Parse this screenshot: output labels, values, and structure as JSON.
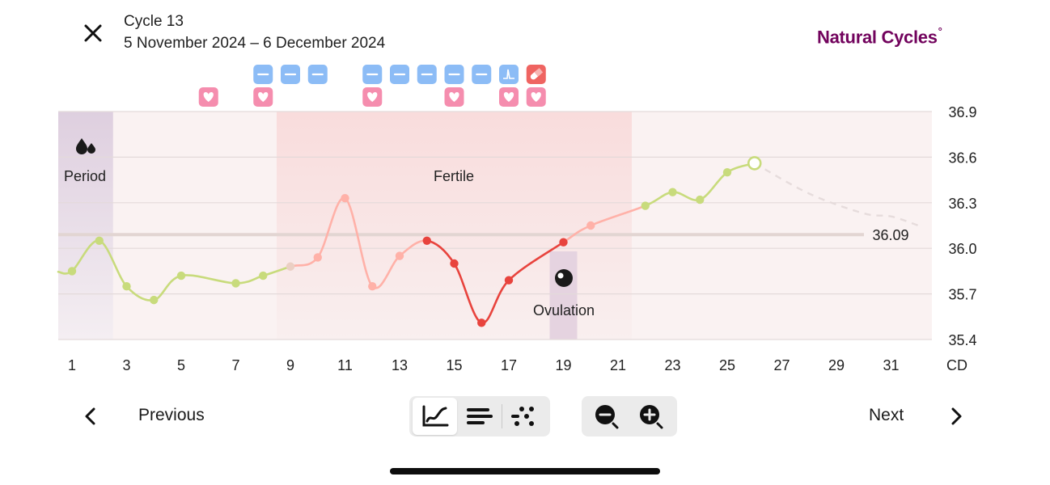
{
  "header": {
    "cycle_title": "Cycle 13",
    "cycle_dates": "5 November 2024 – 6 December 2024",
    "brand": "Natural Cycles",
    "brand_mark": "°"
  },
  "colors": {
    "brand": "#72035d",
    "period_zone": "#decfdf",
    "fertile_zone": "#f9dcdc",
    "infertile_line": "#c8db7c",
    "fertile_line_light": "#ffb1a8",
    "fertile_line_dark": "#e8433d",
    "data_badge": "#8cbcf6",
    "love_badge": "#f58dae",
    "pill_badge": "#ef6461"
  },
  "chart": {
    "zones": [
      {
        "label": "Period",
        "icon": "drops-icon"
      },
      {
        "label": "Fertile"
      },
      {
        "label": "Ovulation",
        "icon": "ovulation-icon"
      }
    ],
    "cover_line_value": "36.09",
    "y_ticks": [
      "36.9",
      "36.6",
      "36.3",
      "36.0",
      "35.7",
      "35.4"
    ],
    "x_ticks": [
      "1",
      "3",
      "5",
      "7",
      "9",
      "11",
      "13",
      "15",
      "17",
      "19",
      "21",
      "23",
      "25",
      "27",
      "29",
      "31"
    ],
    "x_unit": "CD"
  },
  "chart_data": {
    "type": "line",
    "x_label": "CD",
    "ylim": [
      35.4,
      36.9
    ],
    "y_ticks": [
      36.9,
      36.6,
      36.3,
      36.0,
      35.7,
      35.4
    ],
    "x_ticks": [
      1,
      3,
      5,
      7,
      9,
      11,
      13,
      15,
      17,
      19,
      21,
      23,
      25,
      27,
      29,
      31
    ],
    "cover_line": 36.09,
    "period_days": [
      1,
      2
    ],
    "fertile_days": [
      9,
      21
    ],
    "ovulation_day": 19,
    "series": [
      {
        "points": [
          {
            "cd": 1,
            "temp": 35.85,
            "status": "green"
          },
          {
            "cd": 2,
            "temp": 36.05,
            "status": "green"
          },
          {
            "cd": 3,
            "temp": 35.75,
            "status": "green"
          },
          {
            "cd": 4,
            "temp": 35.66,
            "status": "green"
          },
          {
            "cd": 5,
            "temp": 35.82,
            "status": "green"
          },
          {
            "cd": 7,
            "temp": 35.77,
            "status": "green"
          },
          {
            "cd": 8,
            "temp": 35.82,
            "status": "green"
          },
          {
            "cd": 9,
            "temp": 35.88,
            "status": "excluded"
          },
          {
            "cd": 10,
            "temp": 35.94,
            "status": "fertile"
          },
          {
            "cd": 11,
            "temp": 36.33,
            "status": "fertile"
          },
          {
            "cd": 12,
            "temp": 35.75,
            "status": "fertile"
          },
          {
            "cd": 13,
            "temp": 35.95,
            "status": "fertile"
          },
          {
            "cd": 14,
            "temp": 36.05,
            "status": "fertile-dark"
          },
          {
            "cd": 15,
            "temp": 35.9,
            "status": "fertile-dark"
          },
          {
            "cd": 16,
            "temp": 35.51,
            "status": "fertile-dark"
          },
          {
            "cd": 17,
            "temp": 35.79,
            "status": "fertile-dark"
          },
          {
            "cd": 19,
            "temp": 36.04,
            "status": "fertile-dark"
          },
          {
            "cd": 20,
            "temp": 36.15,
            "status": "fertile"
          },
          {
            "cd": 22,
            "temp": 36.28,
            "status": "green"
          },
          {
            "cd": 23,
            "temp": 36.37,
            "status": "green"
          },
          {
            "cd": 24,
            "temp": 36.32,
            "status": "green"
          },
          {
            "cd": 25,
            "temp": 36.5,
            "status": "green"
          },
          {
            "cd": 26,
            "temp": 36.56,
            "status": "today"
          }
        ]
      }
    ],
    "prediction": [
      {
        "cd": 26,
        "temp": 36.56
      },
      {
        "cd": 28,
        "temp": 36.36
      },
      {
        "cd": 30,
        "temp": 36.23
      },
      {
        "cd": 31,
        "temp": 36.21
      },
      {
        "cd": 32,
        "temp": 36.15
      }
    ],
    "markers": [
      {
        "cd": 6,
        "row": 2,
        "type": "love",
        "icon": "heart-icon"
      },
      {
        "cd": 8,
        "row": 1,
        "type": "data",
        "icon": "minus-icon"
      },
      {
        "cd": 8,
        "row": 2,
        "type": "love",
        "icon": "heart-icon"
      },
      {
        "cd": 9,
        "row": 1,
        "type": "data",
        "icon": "minus-icon"
      },
      {
        "cd": 10,
        "row": 1,
        "type": "data",
        "icon": "minus-icon"
      },
      {
        "cd": 12,
        "row": 1,
        "type": "data",
        "icon": "minus-icon"
      },
      {
        "cd": 12,
        "row": 2,
        "type": "love",
        "icon": "heart-icon"
      },
      {
        "cd": 13,
        "row": 1,
        "type": "data",
        "icon": "minus-icon"
      },
      {
        "cd": 14,
        "row": 1,
        "type": "data",
        "icon": "minus-icon"
      },
      {
        "cd": 15,
        "row": 1,
        "type": "data",
        "icon": "minus-icon"
      },
      {
        "cd": 15,
        "row": 2,
        "type": "love",
        "icon": "heart-icon"
      },
      {
        "cd": 16,
        "row": 1,
        "type": "data",
        "icon": "minus-icon"
      },
      {
        "cd": 17,
        "row": 1,
        "type": "lh",
        "icon": "lh-test-icon"
      },
      {
        "cd": 17,
        "row": 2,
        "type": "love",
        "icon": "heart-icon"
      },
      {
        "cd": 18,
        "row": 1,
        "type": "pill",
        "icon": "pill-icon"
      },
      {
        "cd": 18,
        "row": 2,
        "type": "love",
        "icon": "heart-icon"
      }
    ]
  },
  "nav": {
    "previous_label": "Previous",
    "next_label": "Next",
    "view_modes": [
      {
        "name": "graph",
        "icon": "graph-icon",
        "active": true
      },
      {
        "name": "list",
        "icon": "list-icon",
        "active": false
      },
      {
        "name": "scatter",
        "icon": "scatter-icon",
        "active": false
      }
    ],
    "zoom": [
      "zoom-out-icon",
      "zoom-in-icon"
    ]
  }
}
